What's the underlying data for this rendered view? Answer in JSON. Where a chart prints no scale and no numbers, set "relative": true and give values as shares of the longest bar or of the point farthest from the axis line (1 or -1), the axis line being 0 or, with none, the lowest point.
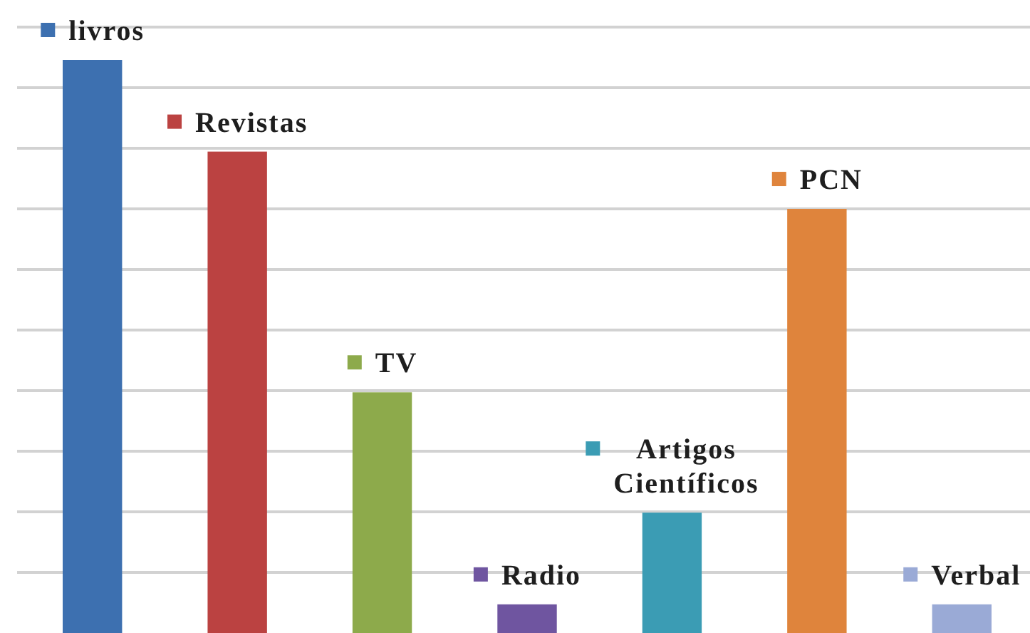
{
  "chart_data": {
    "type": "bar",
    "relative": true,
    "categories": [
      "livros",
      "Revistas",
      "TV",
      "Radio",
      "Artigos Científicos",
      "PCN",
      "Verbal"
    ],
    "values": [
      1,
      0.84,
      0.42,
      0.05,
      0.21,
      0.74,
      0.05
    ],
    "colors": [
      "#3d70b0",
      "#bb4241",
      "#8daa4b",
      "#6f55a0",
      "#3b9cb4",
      "#df843c",
      "#9aaad6"
    ],
    "grid": "y"
  }
}
